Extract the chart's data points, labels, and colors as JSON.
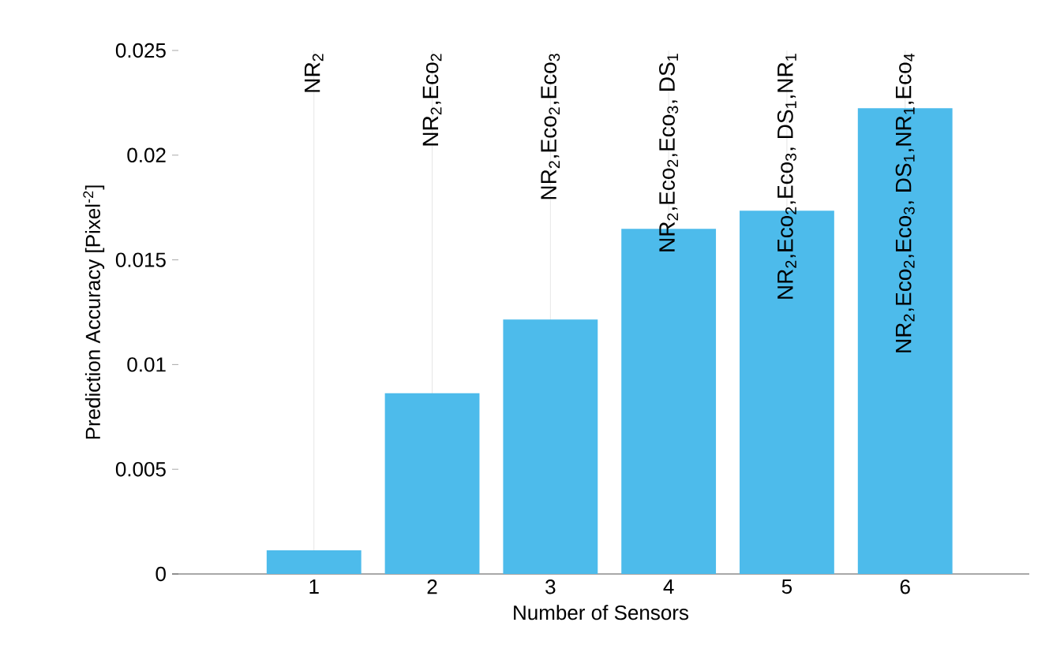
{
  "chart_data": {
    "type": "bar",
    "categories": [
      "1",
      "2",
      "3",
      "4",
      "5",
      "6"
    ],
    "values": [
      0.00113,
      0.00863,
      0.01215,
      0.01648,
      0.01735,
      0.02224
    ],
    "color": "#4dbbeb",
    "xlabel": "Number of Sensors",
    "ylabel": "Prediction Accuracy [Pixel$^{-2}$]",
    "ylim": [
      0,
      0.025
    ],
    "yticks": [
      0,
      0.005,
      0.01,
      0.015,
      0.02,
      0.025
    ],
    "grid": "x",
    "annotations": [
      "NR$_{2}$",
      "NR$_{2}$,Eco$_{2}$",
      "NR$_{2}$,Eco$_{2}$,Eco$_{3}$",
      "NR$_{2}$,Eco$_{2}$,Eco$_{3}$, DS$_{1}$",
      "NR$_{2}$,Eco$_{2}$,Eco$_{3}$, DS$_{1}$,NR$_{1}$",
      "NR$_{2}$,Eco$_{2}$,Eco$_{3}$, DS$_{1}$,NR$_{1}$,Eco$_{4}$"
    ]
  }
}
